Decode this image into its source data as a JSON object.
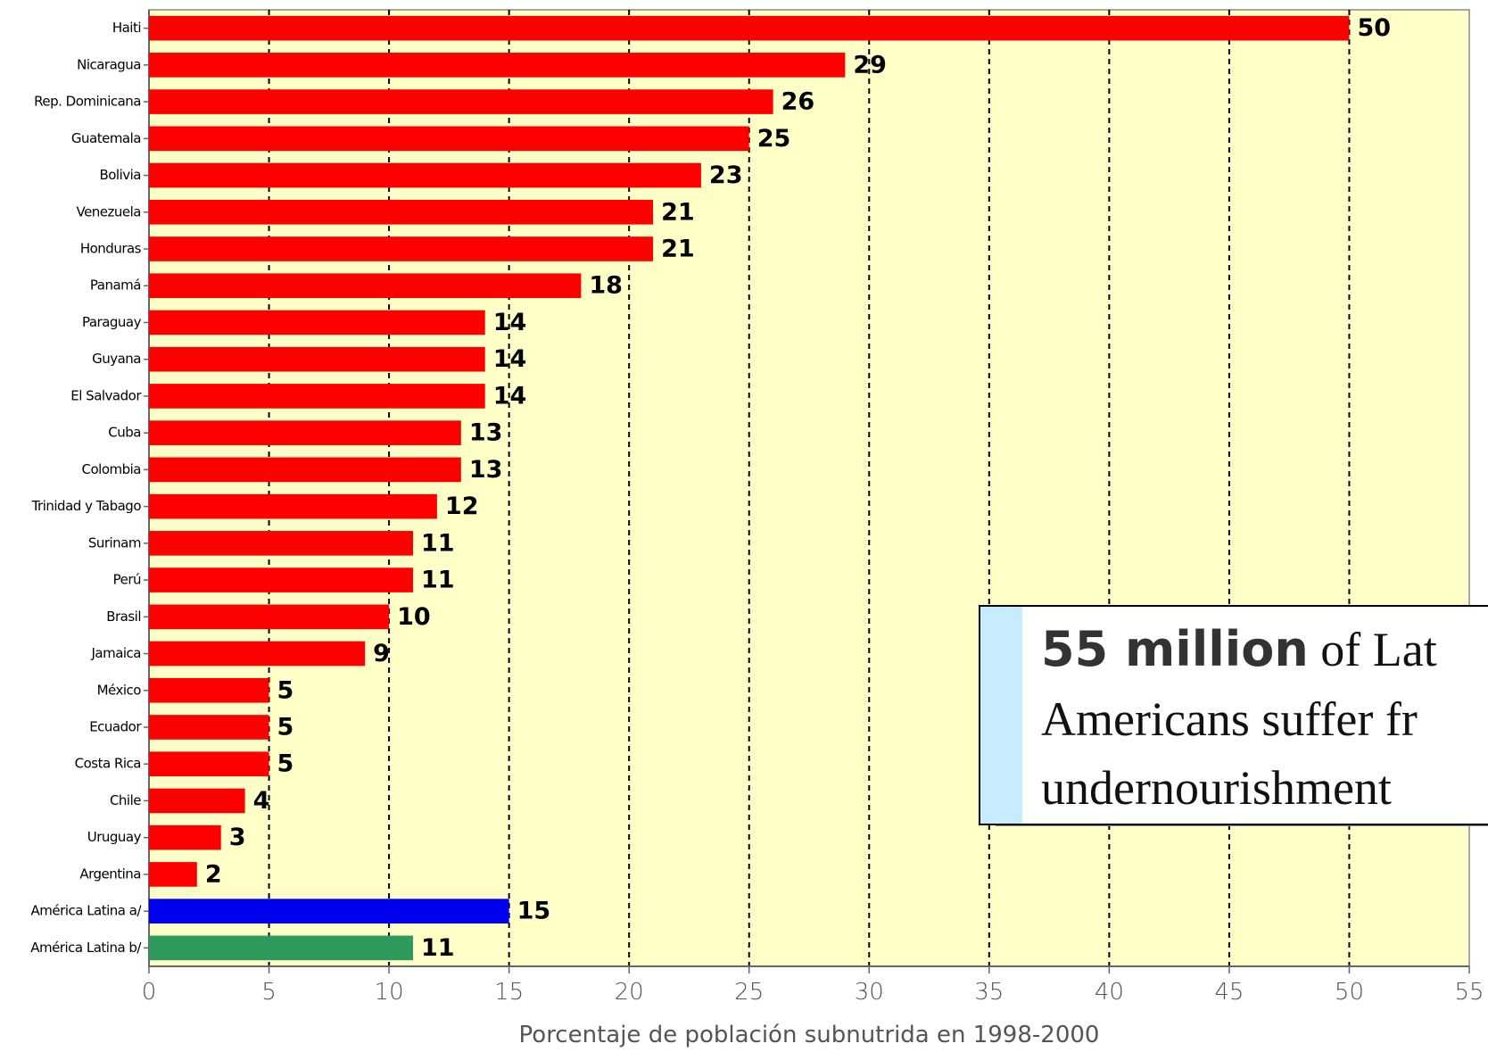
{
  "chart_data": {
    "type": "barh",
    "categories": [
      "Haiti",
      "Nicaragua",
      "Rep. Dominicana",
      "Guatemala",
      "Bolivia",
      "Venezuela",
      "Honduras",
      "Panamá",
      "Paraguay",
      "Guyana",
      "El Salvador",
      "Cuba",
      "Colombia",
      "Trinidad y Tabago",
      "Surinam",
      "Perú",
      "Brasil",
      "Jamaica",
      "México",
      "Ecuador",
      "Costa Rica",
      "Chile",
      "Uruguay",
      "Argentina",
      "América Latina a/",
      "América Latina b/"
    ],
    "values": [
      50,
      29,
      26,
      25,
      23,
      21,
      21,
      18,
      14,
      14,
      14,
      13,
      13,
      12,
      11,
      11,
      10,
      9,
      5,
      5,
      5,
      4,
      3,
      2,
      15,
      11
    ],
    "colors": [
      "#ff0000",
      "#ff0000",
      "#ff0000",
      "#ff0000",
      "#ff0000",
      "#ff0000",
      "#ff0000",
      "#ff0000",
      "#ff0000",
      "#ff0000",
      "#ff0000",
      "#ff0000",
      "#ff0000",
      "#ff0000",
      "#ff0000",
      "#ff0000",
      "#ff0000",
      "#ff0000",
      "#ff0000",
      "#ff0000",
      "#ff0000",
      "#ff0000",
      "#ff0000",
      "#ff0000",
      "#0000ee",
      "#2e9a5e"
    ],
    "xlim": [
      0,
      55
    ],
    "xticks": [
      0,
      5,
      10,
      15,
      20,
      25,
      30,
      35,
      40,
      45,
      50,
      55
    ],
    "grid": true,
    "xlabel": "Porcentaje de población subnutrida en 1998-2000",
    "annotation": {
      "bold": "55 million",
      "lines": [
        "of Lat",
        "Americans suffer fr",
        "undernourishment"
      ]
    }
  }
}
